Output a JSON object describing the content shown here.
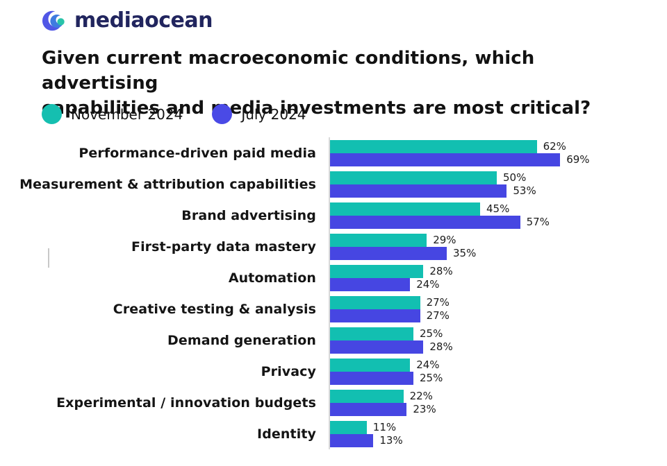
{
  "logo": {
    "text": "mediaocean"
  },
  "title": {
    "line1": "Given current macroeconomic conditions, which advertising",
    "line2": "capabilities and media investments are most critical?"
  },
  "legend": {
    "items": [
      {
        "label": "November 2024",
        "color": "#15BFB0"
      },
      {
        "label": "July 2024",
        "color": "#4A4AE6"
      }
    ]
  },
  "chart_data": {
    "type": "bar",
    "orientation": "horizontal",
    "title": "Given current macroeconomic conditions, which advertising capabilities and media investments are most critical?",
    "categories": [
      "Performance-driven paid media",
      "Measurement & attribution capabilities",
      "Brand advertising",
      "First-party data mastery",
      "Automation",
      "Creative testing & analysis",
      "Demand generation",
      "Privacy",
      "Experimental / innovation budgets",
      "Identity"
    ],
    "series": [
      {
        "name": "November 2024",
        "color": "#12BFB1",
        "values": [
          62,
          50,
          45,
          29,
          28,
          27,
          25,
          24,
          22,
          11
        ]
      },
      {
        "name": "July 2024",
        "color": "#4646E2",
        "values": [
          69,
          53,
          57,
          35,
          24,
          27,
          28,
          25,
          23,
          13
        ]
      }
    ],
    "value_suffix": "%",
    "xlim": [
      0,
      100
    ],
    "grid": false,
    "legend_position": "top-left",
    "value_labels": "end-of-bar"
  }
}
